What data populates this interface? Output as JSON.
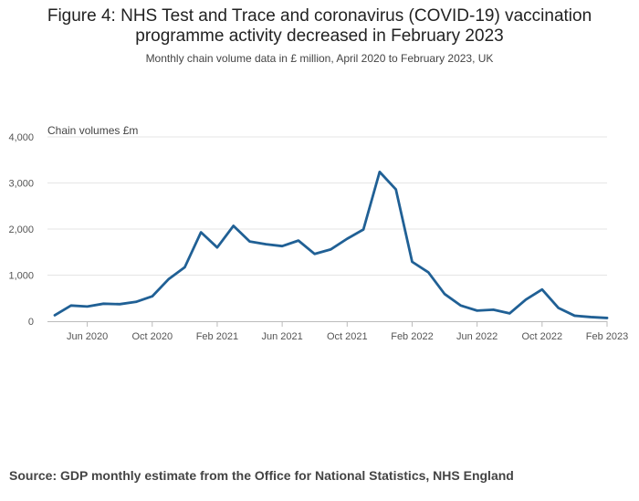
{
  "title_line1": "Figure 4: NHS Test and Trace and coronavirus (COVID-19) vaccination",
  "title_line2": "programme activity decreased in February 2023",
  "subtitle": "Monthly chain volume data in £ million, April 2020 to February 2023, UK",
  "source": "Source: GDP monthly estimate from the Office for National Statistics, NHS England",
  "chart_data": {
    "type": "line",
    "ylabel": "Chain volumes £m",
    "ylim": [
      0,
      4000
    ],
    "y_ticks": [
      0,
      1000,
      2000,
      3000,
      4000
    ],
    "y_tick_labels": [
      "0",
      "1,000",
      "2,000",
      "3,000",
      "4,000"
    ],
    "x_tick_labels": [
      "Jun 2020",
      "Oct 2020",
      "Feb 2021",
      "Jun 2021",
      "Oct 2021",
      "Feb 2022",
      "Jun 2022",
      "Oct 2022",
      "Feb 2023"
    ],
    "x_tick_indices": [
      2,
      6,
      10,
      14,
      18,
      22,
      26,
      30,
      34
    ],
    "grid": true,
    "line_color": "#206095",
    "x": [
      "Apr 2020",
      "May 2020",
      "Jun 2020",
      "Jul 2020",
      "Aug 2020",
      "Sep 2020",
      "Oct 2020",
      "Nov 2020",
      "Dec 2020",
      "Jan 2021",
      "Feb 2021",
      "Mar 2021",
      "Apr 2021",
      "May 2021",
      "Jun 2021",
      "Jul 2021",
      "Aug 2021",
      "Sep 2021",
      "Oct 2021",
      "Nov 2021",
      "Dec 2021",
      "Jan 2022",
      "Feb 2022",
      "Mar 2022",
      "Apr 2022",
      "May 2022",
      "Jun 2022",
      "Jul 2022",
      "Aug 2022",
      "Sep 2022",
      "Oct 2022",
      "Nov 2022",
      "Dec 2022",
      "Jan 2023",
      "Feb 2023"
    ],
    "values": [
      130,
      340,
      320,
      380,
      370,
      420,
      540,
      910,
      1170,
      1930,
      1600,
      2070,
      1730,
      1670,
      1630,
      1750,
      1460,
      1560,
      1790,
      1990,
      3240,
      2860,
      1290,
      1060,
      590,
      340,
      230,
      250,
      170,
      470,
      690,
      290,
      120,
      90,
      70
    ]
  }
}
